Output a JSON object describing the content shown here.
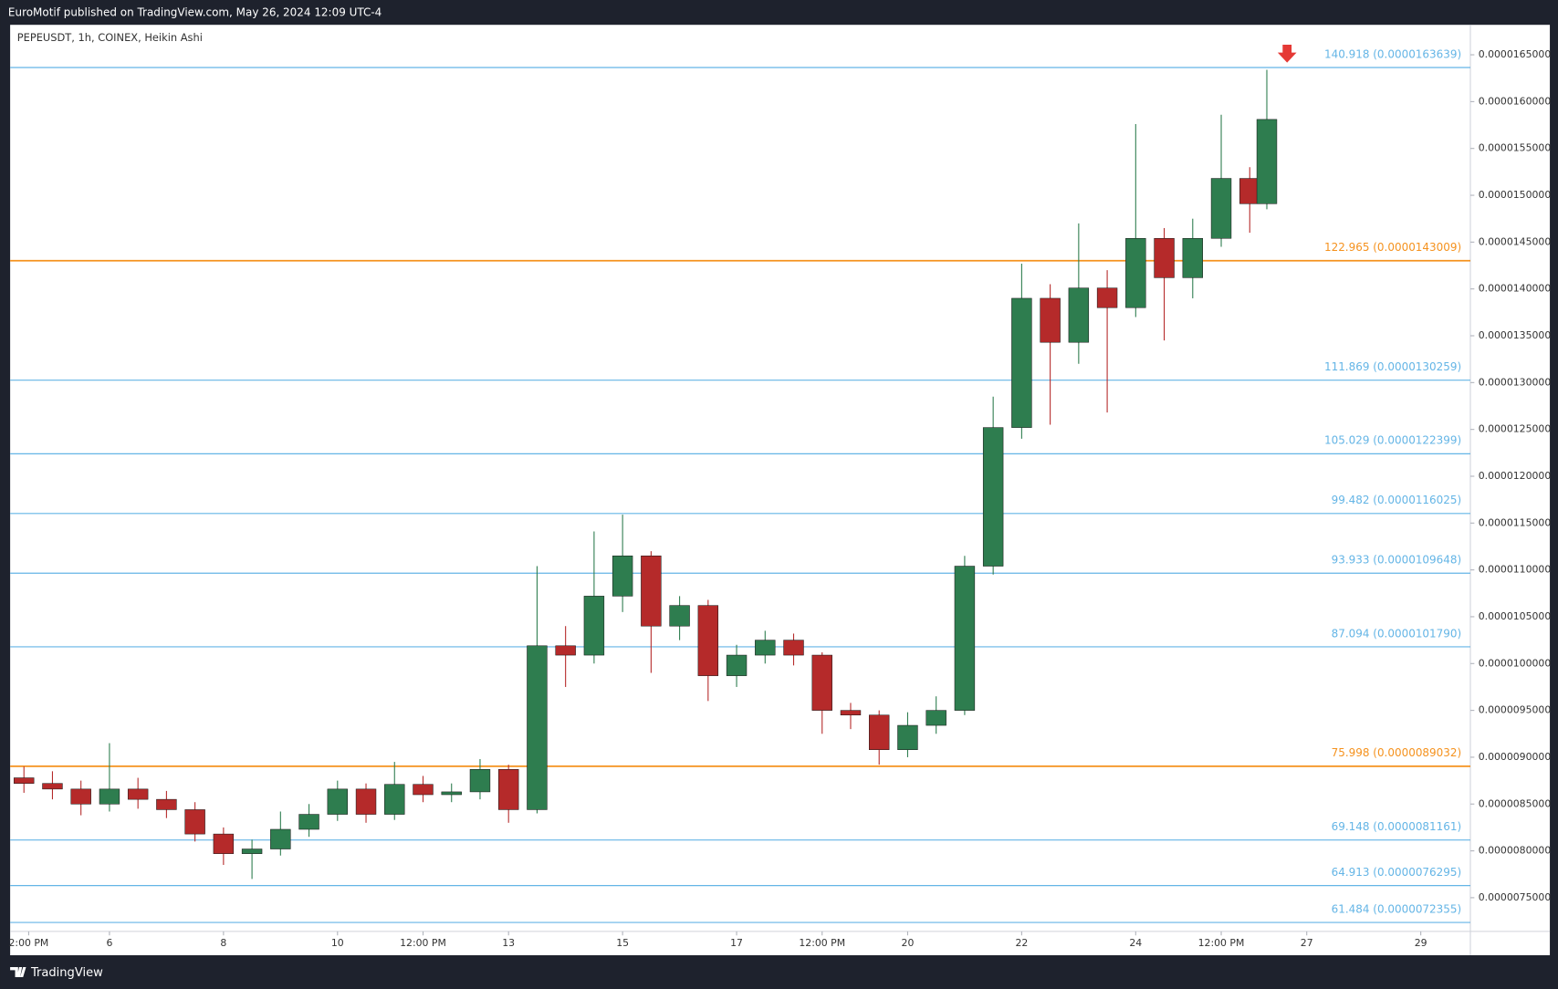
{
  "header": {
    "text": "EuroMotif published on TradingView.com, May 26, 2024 12:09 UTC-4"
  },
  "footer": {
    "brand": "TradingView"
  },
  "chart_data": {
    "type": "candlestick",
    "title": "PEPEUSDT, 1h, COINEX, Heikin Ashi",
    "up_color": "#2e7d4f",
    "down_color": "#b52a2a",
    "x": [
      4.5,
      5,
      5.5,
      6,
      6.5,
      7,
      7.5,
      8,
      8.5,
      9,
      9.5,
      10,
      10.5,
      11,
      11.5,
      12,
      12.5,
      13,
      13.5,
      14,
      14.5,
      15,
      15.5,
      16,
      16.5,
      17,
      17.5,
      18,
      18.5,
      19,
      19.5,
      20,
      20.5,
      21,
      21.5,
      22,
      22.5,
      23,
      23.5,
      24,
      24.5,
      25,
      25.5,
      26,
      26.3
    ],
    "open": [
      8.78e-06,
      8.72e-06,
      8.66e-06,
      8.5e-06,
      8.66e-06,
      8.55e-06,
      8.44e-06,
      8.18e-06,
      7.97e-06,
      8.02e-06,
      8.23e-06,
      8.39e-06,
      8.66e-06,
      8.39e-06,
      8.71e-06,
      8.6e-06,
      8.63e-06,
      8.87e-06,
      8.44e-06,
      1.019e-05,
      1.009e-05,
      1.072e-05,
      1.115e-05,
      1.04e-05,
      1.062e-05,
      9.87e-06,
      1.009e-05,
      1.025e-05,
      1.009e-05,
      9.5e-06,
      9.45e-06,
      9.08e-06,
      9.34e-06,
      9.5e-06,
      1.104e-05,
      1.252e-05,
      1.39e-05,
      1.343e-05,
      1.401e-05,
      1.38e-05,
      1.454e-05,
      1.412e-05,
      1.454e-05,
      1.518e-05,
      1.491e-05
    ],
    "high": [
      8.9e-06,
      8.85e-06,
      8.75e-06,
      9.15e-06,
      8.78e-06,
      8.64e-06,
      8.52e-06,
      8.25e-06,
      8.12e-06,
      8.42e-06,
      8.5e-06,
      8.75e-06,
      8.72e-06,
      8.95e-06,
      8.8e-06,
      8.72e-06,
      8.98e-06,
      8.92e-06,
      1.104e-05,
      1.04e-05,
      1.141e-05,
      1.159e-05,
      1.12e-05,
      1.072e-05,
      1.068e-05,
      1.02e-05,
      1.035e-05,
      1.032e-05,
      1.012e-05,
      9.58e-06,
      9.5e-06,
      9.48e-06,
      9.65e-06,
      1.115e-05,
      1.285e-05,
      1.427e-05,
      1.405e-05,
      1.47e-05,
      1.42e-05,
      1.576e-05,
      1.465e-05,
      1.475e-05,
      1.586e-05,
      1.53e-05,
      1.634e-05
    ],
    "low": [
      8.62e-06,
      8.55e-06,
      8.38e-06,
      8.42e-06,
      8.45e-06,
      8.35e-06,
      8.1e-06,
      7.85e-06,
      7.7e-06,
      7.95e-06,
      8.15e-06,
      8.32e-06,
      8.3e-06,
      8.33e-06,
      8.52e-06,
      8.52e-06,
      8.55e-06,
      8.3e-06,
      8.4e-06,
      9.75e-06,
      1e-05,
      1.055e-05,
      9.9e-06,
      1.025e-05,
      9.6e-06,
      9.75e-06,
      1e-05,
      9.98e-06,
      9.25e-06,
      9.3e-06,
      8.92e-06,
      9e-06,
      9.25e-06,
      9.45e-06,
      1.095e-05,
      1.24e-05,
      1.255e-05,
      1.32e-05,
      1.268e-05,
      1.37e-05,
      1.345e-05,
      1.39e-05,
      1.445e-05,
      1.46e-05,
      1.485e-05
    ],
    "close": [
      8.72e-06,
      8.66e-06,
      8.5e-06,
      8.66e-06,
      8.55e-06,
      8.44e-06,
      8.18e-06,
      7.97e-06,
      8.02e-06,
      8.23e-06,
      8.39e-06,
      8.66e-06,
      8.39e-06,
      8.71e-06,
      8.6e-06,
      8.63e-06,
      8.87e-06,
      8.44e-06,
      1.019e-05,
      1.009e-05,
      1.072e-05,
      1.115e-05,
      1.04e-05,
      1.062e-05,
      9.87e-06,
      1.009e-05,
      1.025e-05,
      1.009e-05,
      9.5e-06,
      9.45e-06,
      9.08e-06,
      9.34e-06,
      9.5e-06,
      1.104e-05,
      1.252e-05,
      1.39e-05,
      1.343e-05,
      1.401e-05,
      1.38e-05,
      1.454e-05,
      1.412e-05,
      1.454e-05,
      1.518e-05,
      1.491e-05,
      1.581e-05
    ],
    "xlim": [
      4.258,
      29.87
    ],
    "xticks": [
      {
        "value": 4.583,
        "label": "2:00 PM"
      },
      6,
      8,
      10,
      {
        "value": 11.5,
        "label": "12:00 PM"
      },
      13,
      15,
      17,
      {
        "value": 18.5,
        "label": "12:00 PM"
      },
      20,
      22,
      24,
      {
        "value": 25.5,
        "label": "12:00 PM"
      },
      27,
      29
    ],
    "ylim": [
      7.14e-06,
      1.682e-05
    ],
    "yticks": [
      {
        "value": 7.5e-06,
        "label": "0.0000075000"
      },
      {
        "value": 8e-06,
        "label": "0.0000080000"
      },
      {
        "value": 8.5e-06,
        "label": "0.0000085000"
      },
      {
        "value": 9e-06,
        "label": "0.0000090000"
      },
      {
        "value": 9.5e-06,
        "label": "0.0000095000"
      },
      {
        "value": 1e-05,
        "label": "0.0000100000"
      },
      {
        "value": 1.05e-05,
        "label": "0.0000105000"
      },
      {
        "value": 1.1e-05,
        "label": "0.0000110000"
      },
      {
        "value": 1.15e-05,
        "label": "0.0000115000"
      },
      {
        "value": 1.2e-05,
        "label": "0.0000120000"
      },
      {
        "value": 1.25e-05,
        "label": "0.0000125000"
      },
      {
        "value": 1.3e-05,
        "label": "0.0000130000"
      },
      {
        "value": 1.35e-05,
        "label": "0.0000135000"
      },
      {
        "value": 1.4e-05,
        "label": "0.0000140000"
      },
      {
        "value": 1.45e-05,
        "label": "0.0000145000"
      },
      {
        "value": 1.5e-05,
        "label": "0.0000150000"
      },
      {
        "value": 1.55e-05,
        "label": "0.0000155000"
      },
      {
        "value": 1.6e-05,
        "label": "0.0000160000"
      },
      {
        "value": 1.65e-05,
        "label": "0.0000165000"
      }
    ],
    "levels": [
      {
        "value": 1.63639e-05,
        "label": "140.918 (0.0000163639)",
        "color": "#64b5e6"
      },
      {
        "value": 1.43009e-05,
        "label": "122.965 (0.0000143009)",
        "color": "#f5921e"
      },
      {
        "value": 1.30259e-05,
        "label": "111.869 (0.0000130259)",
        "color": "#64b5e6"
      },
      {
        "value": 1.22399e-05,
        "label": "105.029 (0.0000122399)",
        "color": "#64b5e6"
      },
      {
        "value": 1.16025e-05,
        "label": "99.482 (0.0000116025)",
        "color": "#64b5e6"
      },
      {
        "value": 1.09648e-05,
        "label": "93.933 (0.0000109648)",
        "color": "#64b5e6"
      },
      {
        "value": 1.0179e-05,
        "label": "87.094 (0.0000101790)",
        "color": "#64b5e6"
      },
      {
        "value": 8.9032e-06,
        "label": "75.998 (0.0000089032)",
        "color": "#f5921e"
      },
      {
        "value": 8.1161e-06,
        "label": "69.148 (0.0000081161)",
        "color": "#64b5e6"
      },
      {
        "value": 7.6295e-06,
        "label": "64.913 (0.0000076295)",
        "color": "#64b5e6"
      },
      {
        "value": 7.2355e-06,
        "label": "61.484 (0.0000072355)",
        "color": "#64b5e6"
      }
    ]
  }
}
